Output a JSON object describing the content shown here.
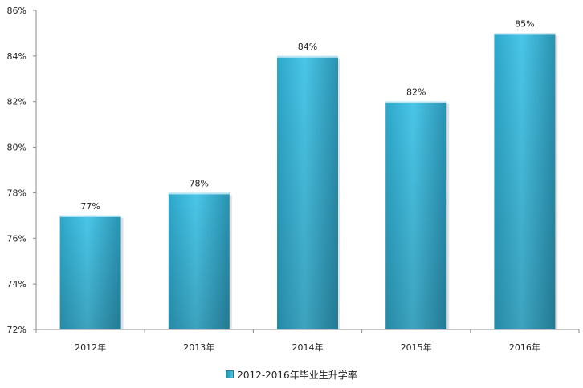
{
  "chart_data": {
    "type": "bar",
    "categories": [
      "2012年",
      "2013年",
      "2014年",
      "2015年",
      "2016年"
    ],
    "series": [
      {
        "name": "2012-2016年毕业生升学率",
        "values": [
          77,
          78,
          84,
          82,
          85
        ]
      }
    ],
    "data_labels": [
      "77%",
      "78%",
      "84%",
      "82%",
      "85%"
    ],
    "ylim": [
      72,
      86
    ],
    "yticks": [
      "72%",
      "74%",
      "76%",
      "78%",
      "80%",
      "82%",
      "84%",
      "86%"
    ],
    "grid": false,
    "legend_position": "bottom",
    "bar_color": "#3bb8dc"
  }
}
